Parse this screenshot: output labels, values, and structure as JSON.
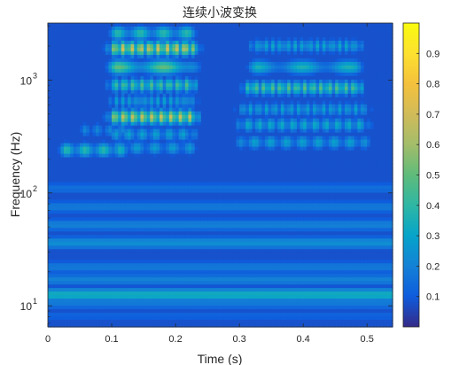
{
  "chart_data": {
    "type": "heatmap",
    "title": "连续小波变换",
    "xlabel": "Time (s)",
    "ylabel": "Frequency (Hz)",
    "xlim": [
      0,
      0.54
    ],
    "ylim": [
      6.5,
      3200
    ],
    "yscale": "log",
    "x_ticks": [
      {
        "value": 0,
        "label": "0"
      },
      {
        "value": 0.1,
        "label": "0.1"
      },
      {
        "value": 0.2,
        "label": "0.2"
      },
      {
        "value": 0.3,
        "label": "0.3"
      },
      {
        "value": 0.4,
        "label": "0.4"
      },
      {
        "value": 0.5,
        "label": "0.5"
      }
    ],
    "y_ticks": [
      {
        "value": 10,
        "base": "10",
        "exp": "1"
      },
      {
        "value": 100,
        "base": "10",
        "exp": "2"
      },
      {
        "value": 1000,
        "base": "10",
        "exp": "3"
      }
    ],
    "colorbar": {
      "colormap": "parula",
      "min": 0,
      "max": 1,
      "ticks": [
        "0.1",
        "0.2",
        "0.3",
        "0.4",
        "0.5",
        "0.6",
        "0.7",
        "0.8",
        "0.9"
      ]
    },
    "background_value": 0.08,
    "features": [
      {
        "t0": 0.0,
        "t1": 0.54,
        "f": 12.5,
        "value": 0.34
      },
      {
        "t0": 0.0,
        "t1": 0.54,
        "f": 10.5,
        "value": 0.18
      },
      {
        "t0": 0.0,
        "t1": 0.54,
        "f": 8.2,
        "value": 0.12
      },
      {
        "t0": 0.0,
        "t1": 0.54,
        "f": 17,
        "value": 0.2
      },
      {
        "t0": 0.0,
        "t1": 0.54,
        "f": 22,
        "value": 0.18
      },
      {
        "t0": 0.0,
        "t1": 0.54,
        "f": 36,
        "value": 0.24
      },
      {
        "t0": 0.0,
        "t1": 0.54,
        "f": 52,
        "value": 0.2
      },
      {
        "t0": 0.0,
        "t1": 0.54,
        "f": 75,
        "value": 0.18
      },
      {
        "t0": 0.0,
        "t1": 0.54,
        "f": 110,
        "value": 0.15
      },
      {
        "t0": 0.03,
        "t1": 0.11,
        "f": 240,
        "value": 0.4
      },
      {
        "t0": 0.06,
        "t1": 0.12,
        "f": 360,
        "value": 0.22
      },
      {
        "t0": 0.11,
        "t1": 0.22,
        "f": 470,
        "value": 0.7
      },
      {
        "t0": 0.11,
        "t1": 0.22,
        "f": 330,
        "value": 0.3
      },
      {
        "t0": 0.11,
        "t1": 0.22,
        "f": 250,
        "value": 0.28
      },
      {
        "t0": 0.11,
        "t1": 0.22,
        "f": 650,
        "value": 0.3
      },
      {
        "t0": 0.11,
        "t1": 0.22,
        "f": 900,
        "value": 0.48
      },
      {
        "t0": 0.11,
        "t1": 0.22,
        "f": 1300,
        "value": 0.5
      },
      {
        "t0": 0.11,
        "t1": 0.22,
        "f": 1900,
        "value": 0.72
      },
      {
        "t0": 0.11,
        "t1": 0.22,
        "f": 2600,
        "value": 0.4
      },
      {
        "t0": 0.31,
        "t1": 0.49,
        "f": 280,
        "value": 0.3
      },
      {
        "t0": 0.31,
        "t1": 0.49,
        "f": 400,
        "value": 0.34
      },
      {
        "t0": 0.31,
        "t1": 0.49,
        "f": 550,
        "value": 0.3
      },
      {
        "t0": 0.32,
        "t1": 0.48,
        "f": 850,
        "value": 0.5
      },
      {
        "t0": 0.33,
        "t1": 0.48,
        "f": 1300,
        "value": 0.36
      },
      {
        "t0": 0.33,
        "t1": 0.48,
        "f": 2000,
        "value": 0.32
      }
    ]
  }
}
